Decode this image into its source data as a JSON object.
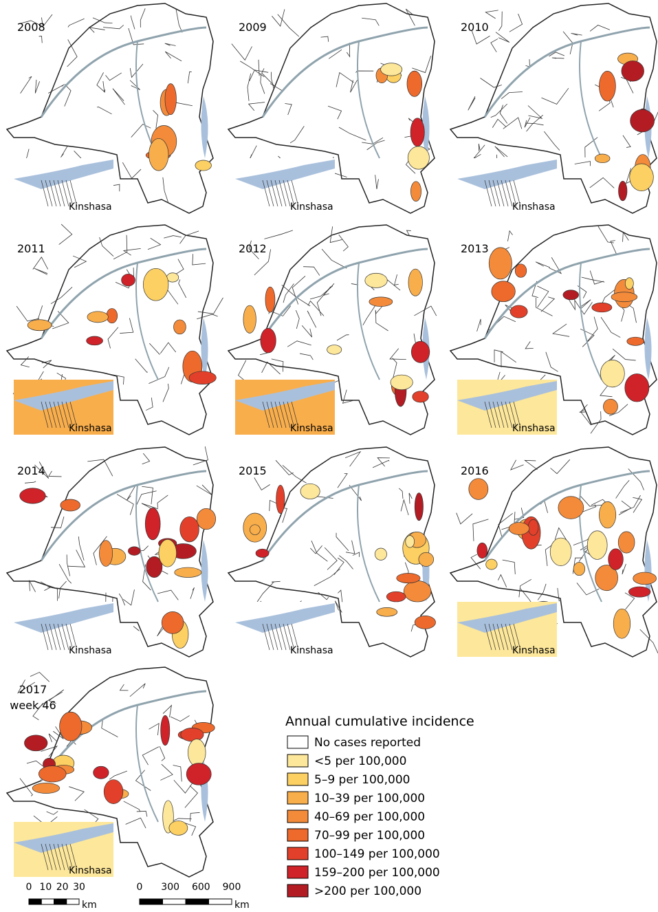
{
  "panels": [
    {
      "year": "2008",
      "inset_label": "Kinshasa"
    },
    {
      "year": "2009",
      "inset_label": "Kinshasa"
    },
    {
      "year": "2010",
      "inset_label": "Kinshasa"
    },
    {
      "year": "2011",
      "inset_label": "Kinshasa"
    },
    {
      "year": "2012",
      "inset_label": "Kinshasa"
    },
    {
      "year": "2013",
      "inset_label": "Kinshasa"
    },
    {
      "year": "2014",
      "inset_label": "Kinshasa"
    },
    {
      "year": "2015",
      "inset_label": "Kinshasa"
    },
    {
      "year": "2016",
      "inset_label": "Kinshasa"
    },
    {
      "year": "2017",
      "subtitle": "week 46",
      "inset_label": "Kinshasa"
    }
  ],
  "legend": {
    "title": "Annual cumulative incidence",
    "items": [
      {
        "label": "No cases reported",
        "color": "#ffffff"
      },
      {
        "label": "<5 per 100,000",
        "color": "#fde79a"
      },
      {
        "label": "5–9 per 100,000",
        "color": "#fcd062"
      },
      {
        "label": "10–39 per 100,000",
        "color": "#f9ae4c"
      },
      {
        "label": "40–69 per 100,000",
        "color": "#f48b3a"
      },
      {
        "label": "70–99 per 100,000",
        "color": "#ee6a2c"
      },
      {
        "label": "100–149 per 100,000",
        "color": "#e2402a"
      },
      {
        "label": "159–200 per 100,000",
        "color": "#cf2229"
      },
      {
        "label": ">200 per 100,000",
        "color": "#b31c23"
      }
    ]
  },
  "scale_bars": [
    {
      "ticks": [
        "0",
        "10",
        "20",
        "30"
      ],
      "unit": "km"
    },
    {
      "ticks": [
        "0",
        "300",
        "600",
        "900"
      ],
      "unit": "km"
    }
  ]
}
